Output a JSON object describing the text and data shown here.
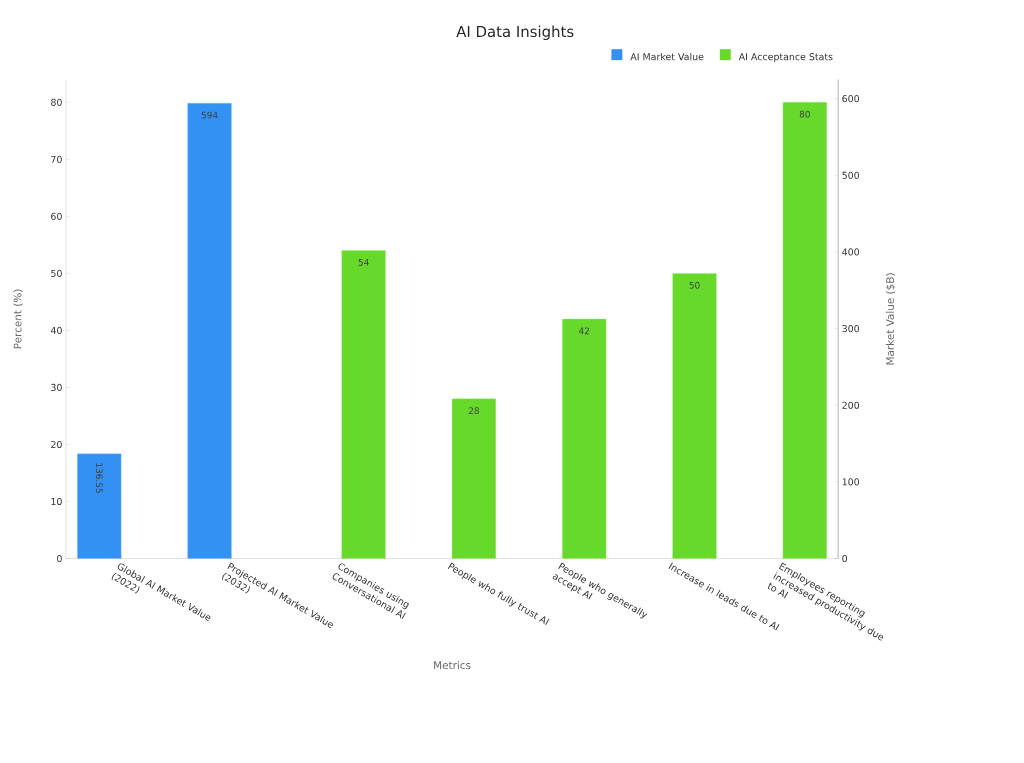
{
  "chart_data": {
    "type": "bar",
    "title": "AI Data Insights",
    "xlabel": "Metrics",
    "ylabel": "Percent (%)",
    "y2label": "Market Value ($B)",
    "categories": [
      "Global AI Market Value (2022)",
      "Projected AI Market Value (2032)",
      "Companies using Conversational AI",
      "People who fully trust AI",
      "People who generally accept AI",
      "Increase in leads due to AI",
      "Employees reporting increased productivity due to AI"
    ],
    "series": [
      {
        "name": "AI Market Value",
        "color": "#3291f3",
        "axis": "y2",
        "values": [
          136.55,
          594,
          null,
          null,
          null,
          null,
          null
        ]
      },
      {
        "name": "AI Acceptance Stats",
        "color": "#66d92a",
        "axis": "y",
        "values": [
          null,
          null,
          54,
          28,
          42,
          50,
          80
        ]
      }
    ],
    "ylim": [
      0,
      84
    ],
    "yticks": [
      0,
      10,
      20,
      30,
      40,
      50,
      60,
      70,
      80
    ],
    "y2lim": [
      0,
      625
    ],
    "y2ticks": [
      0,
      100,
      200,
      300,
      400,
      500,
      600
    ],
    "data_labels": true,
    "legend": "top right",
    "grid": false
  }
}
